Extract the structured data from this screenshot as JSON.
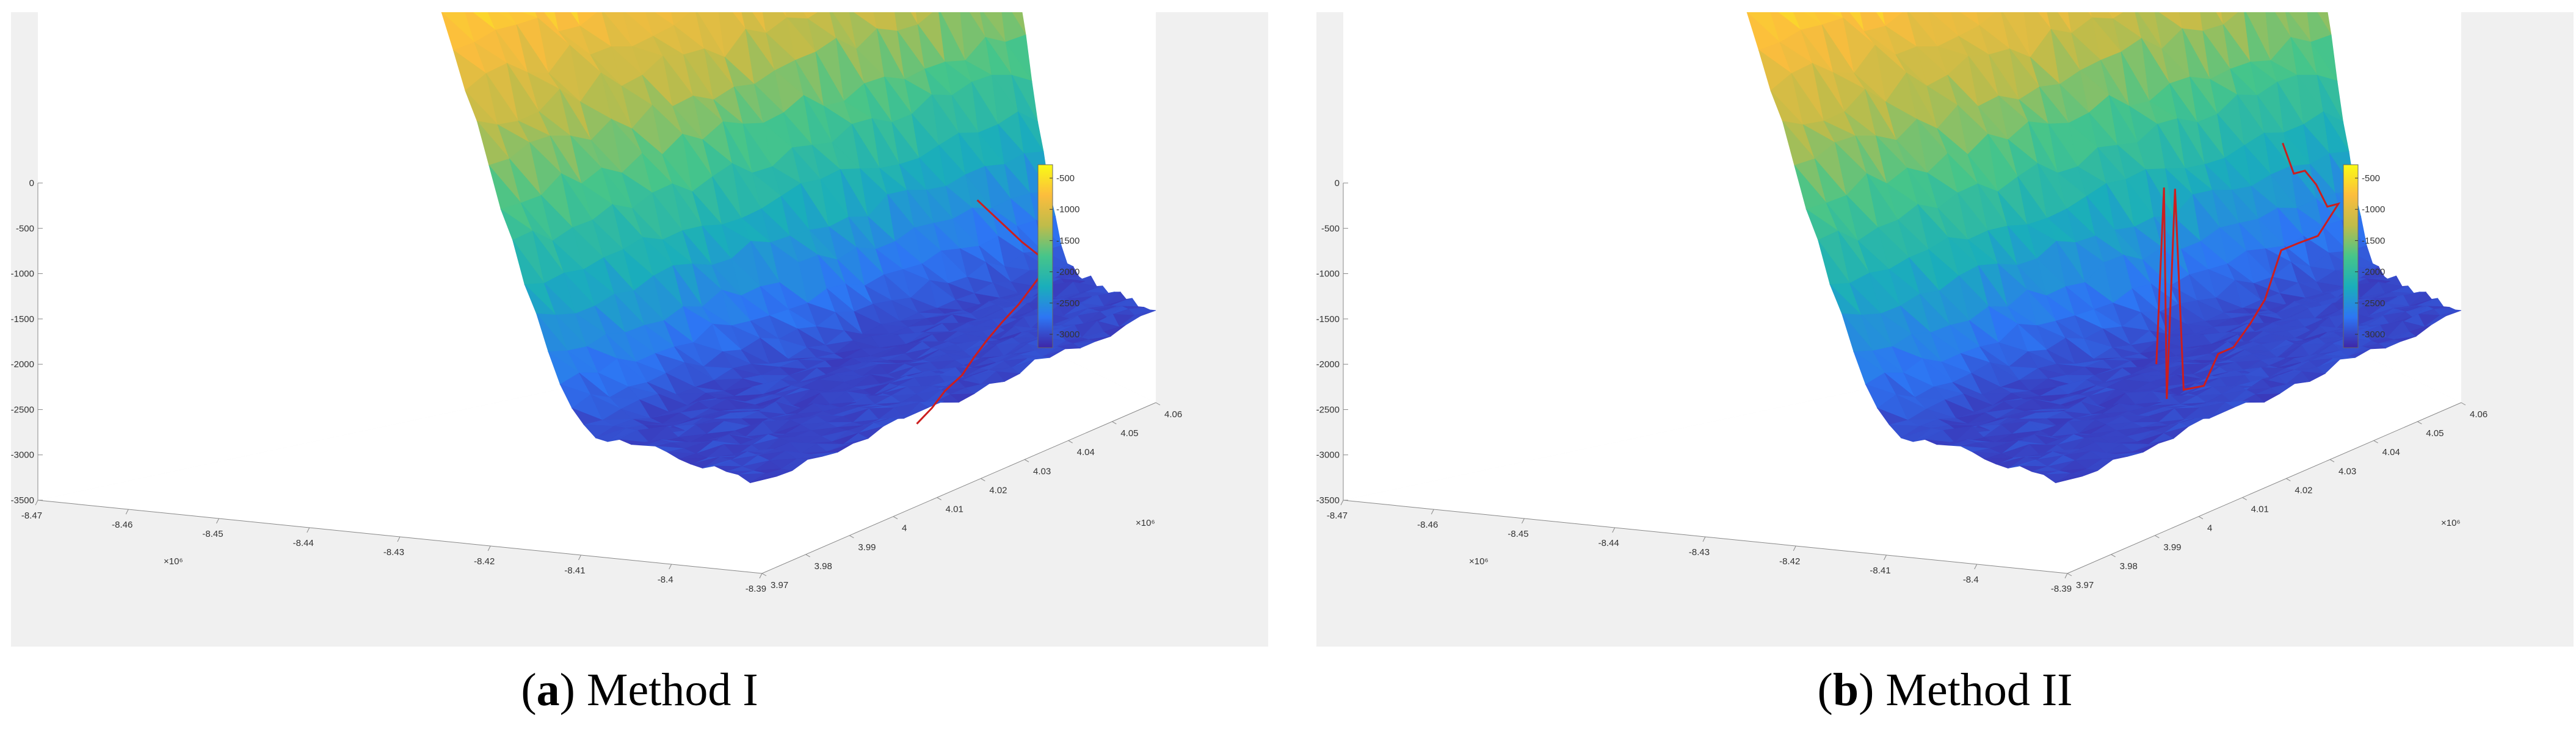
{
  "captions": [
    {
      "letter": "a",
      "text": "Method I"
    },
    {
      "letter": "b",
      "text": "Method II"
    }
  ],
  "chart_data": [
    {
      "type": "surface",
      "z_ticks": [
        "0",
        "-500",
        "-1000",
        "-1500",
        "-2000",
        "-2500",
        "-3000",
        "-3500"
      ],
      "x_ticks": [
        "-8.47",
        "-8.46",
        "-8.45",
        "-8.44",
        "-8.43",
        "-8.42",
        "-8.41",
        "-8.4",
        "-8.39"
      ],
      "x_exponent": "×10⁶",
      "y_ticks": [
        "3.97",
        "3.98",
        "3.99",
        "4",
        "4.01",
        "4.02",
        "4.03",
        "4.04",
        "4.05",
        "4.06"
      ],
      "y_exponent": "×10⁶",
      "colorbar_ticks": [
        "-500",
        "-1000",
        "-1500",
        "-2000",
        "-2500",
        "-3000"
      ],
      "colormap": [
        "#3e26a8",
        "#2d76f4",
        "#1aaebb",
        "#46c58a",
        "#bfbc4a",
        "#fcbd3d",
        "#f9fb15"
      ],
      "track_color": "#cc1e1e",
      "track": [
        [
          -8.435,
          3.975,
          -3120
        ],
        [
          -8.43,
          3.978,
          -3110
        ],
        [
          -8.425,
          3.982,
          -3100
        ],
        [
          -8.42,
          3.985,
          -3090
        ],
        [
          -8.415,
          3.99,
          -3080
        ],
        [
          -8.41,
          3.995,
          -3070
        ],
        [
          -8.405,
          4.0,
          -3060
        ],
        [
          -8.4,
          4.005,
          -3050
        ],
        [
          -8.396,
          4.01,
          -3040
        ],
        [
          -8.392,
          4.015,
          -3020
        ],
        [
          -8.388,
          4.02,
          -3000
        ],
        [
          -8.384,
          4.025,
          -2980
        ],
        [
          -8.38,
          4.03,
          -2960
        ],
        [
          -8.376,
          4.035,
          -2930
        ],
        [
          -8.372,
          4.04,
          -2900
        ],
        [
          -8.368,
          4.045,
          -2870
        ],
        [
          -8.364,
          4.05,
          -2840
        ]
      ]
    },
    {
      "type": "surface",
      "z_ticks": [
        "0",
        "-500",
        "-1000",
        "-1500",
        "-2000",
        "-2500",
        "-3000",
        "-3500"
      ],
      "x_ticks": [
        "-8.47",
        "-8.46",
        "-8.45",
        "-8.44",
        "-8.43",
        "-8.42",
        "-8.41",
        "-8.4",
        "-8.39"
      ],
      "x_exponent": "×10⁶",
      "y_ticks": [
        "3.97",
        "3.98",
        "3.99",
        "4",
        "4.01",
        "4.02",
        "4.03",
        "4.04",
        "4.05",
        "4.06"
      ],
      "y_exponent": "×10⁶",
      "colorbar_ticks": [
        "-500",
        "-1000",
        "-1500",
        "-2000",
        "-2500",
        "-3000"
      ],
      "colormap": [
        "#3e26a8",
        "#2d76f4",
        "#1aaebb",
        "#46c58a",
        "#bfbc4a",
        "#fcbd3d",
        "#f9fb15"
      ],
      "track_color": "#cc1e1e",
      "track": [
        [
          -8.448,
          3.975,
          -2600
        ],
        [
          -8.445,
          3.977,
          -1600
        ],
        [
          -8.443,
          3.979,
          -2900
        ],
        [
          -8.44,
          3.981,
          -1700
        ],
        [
          -8.437,
          3.983,
          -2950
        ],
        [
          -8.43,
          3.988,
          -3050
        ],
        [
          -8.425,
          3.992,
          -2950
        ],
        [
          -8.42,
          3.996,
          -3000
        ],
        [
          -8.415,
          4.0,
          -2950
        ],
        [
          -8.41,
          4.005,
          -2900
        ],
        [
          -8.405,
          4.01,
          -2700
        ],
        [
          -8.4,
          4.015,
          -2750
        ],
        [
          -8.395,
          4.02,
          -2800
        ],
        [
          -8.39,
          4.025,
          -2700
        ],
        [
          -8.385,
          4.03,
          -2750
        ],
        [
          -8.382,
          4.035,
          -2650
        ],
        [
          -8.378,
          4.04,
          -2600
        ],
        [
          -8.374,
          4.045,
          -2650
        ],
        [
          -8.37,
          4.05,
          -2500
        ]
      ]
    }
  ]
}
